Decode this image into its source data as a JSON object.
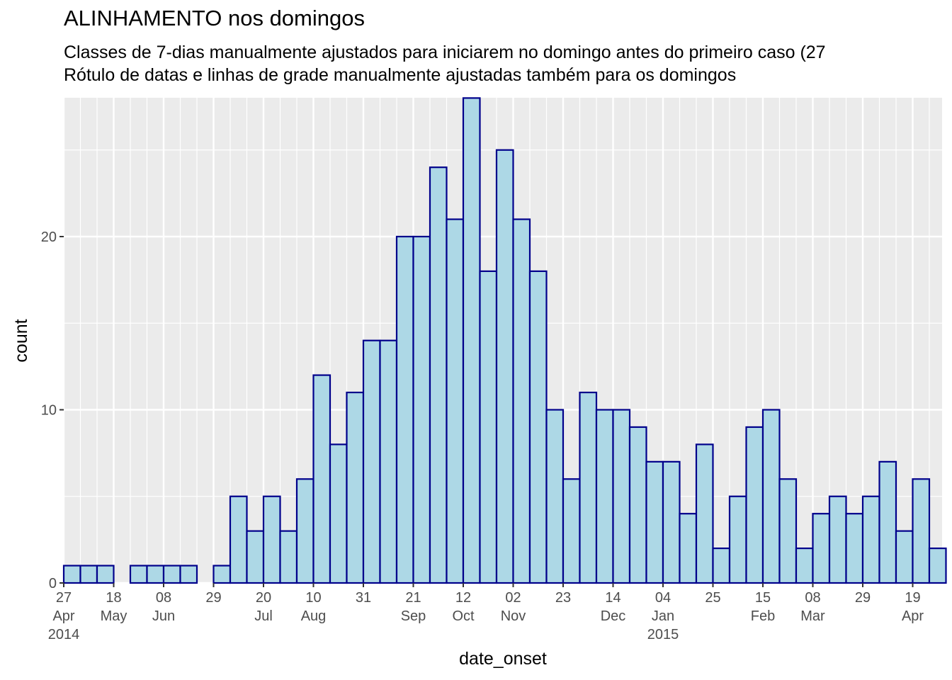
{
  "chart_data": {
    "type": "bar",
    "title": "ALINHAMENTO nos domingos",
    "subtitle_lines": [
      "Classes de 7-dias manualmente ajustados para iniciarem no domingo antes do primeiro caso (27",
      "Rótulo de datas e linhas de grade manualmente ajustadas também para os domingos"
    ],
    "xlabel": "date_onset",
    "ylabel": "count",
    "bin_width_days": 7,
    "bin_starts": [
      "2014-04-27",
      "2014-05-04",
      "2014-05-11",
      "2014-05-18",
      "2014-05-25",
      "2014-06-01",
      "2014-06-08",
      "2014-06-15",
      "2014-06-22",
      "2014-06-29",
      "2014-07-06",
      "2014-07-13",
      "2014-07-20",
      "2014-07-27",
      "2014-08-03",
      "2014-08-10",
      "2014-08-17",
      "2014-08-24",
      "2014-08-31",
      "2014-09-07",
      "2014-09-14",
      "2014-09-21",
      "2014-09-28",
      "2014-10-05",
      "2014-10-12",
      "2014-10-19",
      "2014-10-26",
      "2014-11-02",
      "2014-11-09",
      "2014-11-16",
      "2014-11-23",
      "2014-11-30",
      "2014-12-07",
      "2014-12-14",
      "2014-12-21",
      "2014-12-28",
      "2015-01-04",
      "2015-01-11",
      "2015-01-18",
      "2015-01-25",
      "2015-02-01",
      "2015-02-08",
      "2015-02-15",
      "2015-02-22",
      "2015-03-01",
      "2015-03-08",
      "2015-03-15",
      "2015-03-22",
      "2015-03-29",
      "2015-04-05",
      "2015-04-12",
      "2015-04-19",
      "2015-04-26"
    ],
    "values": [
      1,
      1,
      1,
      0,
      1,
      1,
      1,
      1,
      0,
      1,
      5,
      3,
      5,
      3,
      6,
      12,
      8,
      11,
      14,
      14,
      20,
      20,
      24,
      21,
      28,
      18,
      25,
      21,
      18,
      10,
      6,
      11,
      10,
      10,
      9,
      7,
      7,
      4,
      8,
      2,
      5,
      9,
      10,
      6,
      2,
      4,
      5,
      4,
      5,
      7,
      3,
      6,
      2
    ],
    "ylim": [
      0,
      28
    ],
    "y_ticks": [
      "0",
      "10",
      "20"
    ],
    "x_ticks": [
      {
        "date": "2014-04-27",
        "day": "27",
        "month": "Apr",
        "year": "2014"
      },
      {
        "date": "2014-05-18",
        "day": "18",
        "month": "May",
        "year": ""
      },
      {
        "date": "2014-06-08",
        "day": "08",
        "month": "Jun",
        "year": ""
      },
      {
        "date": "2014-06-29",
        "day": "29",
        "month": "",
        "year": ""
      },
      {
        "date": "2014-07-20",
        "day": "20",
        "month": "Jul",
        "year": ""
      },
      {
        "date": "2014-08-10",
        "day": "10",
        "month": "Aug",
        "year": ""
      },
      {
        "date": "2014-08-31",
        "day": "31",
        "month": "",
        "year": ""
      },
      {
        "date": "2014-09-21",
        "day": "21",
        "month": "Sep",
        "year": ""
      },
      {
        "date": "2014-10-12",
        "day": "12",
        "month": "Oct",
        "year": ""
      },
      {
        "date": "2014-11-02",
        "day": "02",
        "month": "Nov",
        "year": ""
      },
      {
        "date": "2014-11-23",
        "day": "23",
        "month": "",
        "year": ""
      },
      {
        "date": "2014-12-14",
        "day": "14",
        "month": "Dec",
        "year": ""
      },
      {
        "date": "2015-01-04",
        "day": "04",
        "month": "Jan",
        "year": "2015"
      },
      {
        "date": "2015-01-25",
        "day": "25",
        "month": "",
        "year": ""
      },
      {
        "date": "2015-02-15",
        "day": "15",
        "month": "Feb",
        "year": ""
      },
      {
        "date": "2015-03-08",
        "day": "08",
        "month": "Mar",
        "year": ""
      },
      {
        "date": "2015-03-29",
        "day": "29",
        "month": "",
        "year": ""
      },
      {
        "date": "2015-04-19",
        "day": "19",
        "month": "Apr",
        "year": ""
      }
    ],
    "colors": {
      "bar_fill": "#ADD8E6",
      "bar_outline": "#00008B",
      "panel_background": "#EBEBEB",
      "grid": "#FFFFFF"
    },
    "grid": true,
    "legend": "none"
  }
}
